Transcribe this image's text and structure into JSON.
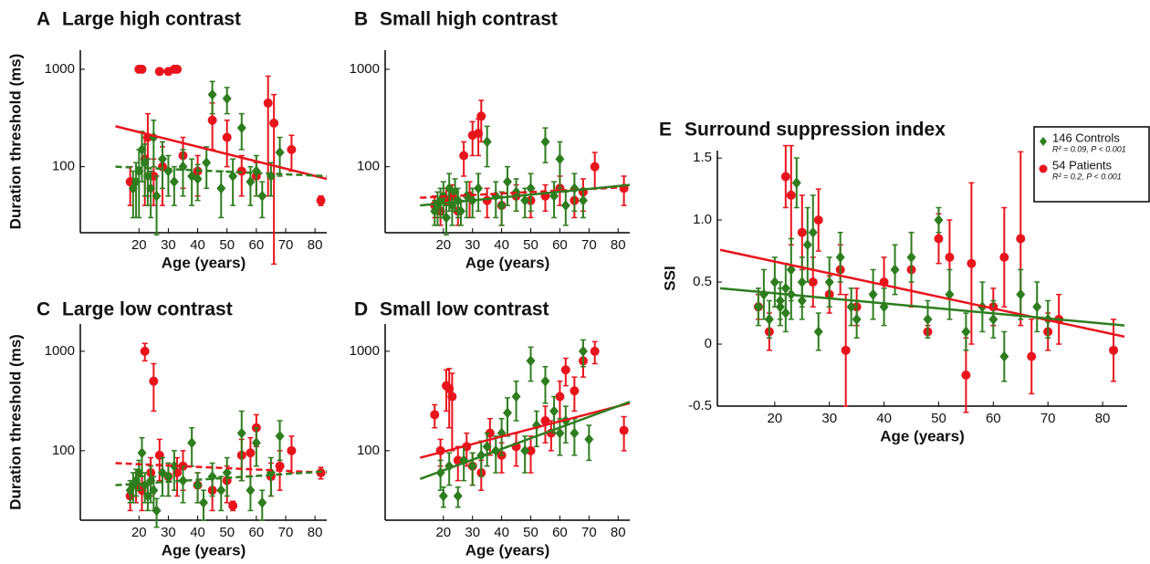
{
  "chart_data": [
    {
      "type": "scatter",
      "panel": "A",
      "title": "Large high contrast",
      "xlabel": "Age (years)",
      "ylabel": "Duration threshold (ms)",
      "log_y": true,
      "xlim": [
        0,
        84
      ],
      "ylim": [
        21,
        1570
      ],
      "xticks": [
        20,
        30,
        40,
        50,
        60,
        70,
        80
      ],
      "yticks": [
        100,
        1000
      ],
      "series": [
        {
          "color": "#e8141c",
          "marker": "circle",
          "x": [
            17,
            20,
            21,
            22,
            23,
            25,
            27,
            28,
            30,
            32,
            33,
            35,
            40,
            45,
            50,
            55,
            60,
            64,
            66,
            72,
            82
          ],
          "values": [
            70,
            1000,
            1000,
            120,
            200,
            80,
            950,
            100,
            950,
            1000,
            1000,
            130,
            90,
            300,
            200,
            90,
            80,
            450,
            280,
            150,
            45
          ],
          "errors": [
            30,
            0,
            0,
            80,
            150,
            40,
            0,
            60,
            0,
            0,
            0,
            70,
            40,
            150,
            100,
            40,
            30,
            400,
            270,
            60,
            5
          ],
          "fit": {
            "x": [
              12,
              84
            ],
            "y": [
              260,
              75
            ],
            "dashed": false
          }
        },
        {
          "color": "#2e7d1f",
          "marker": "diamond",
          "x": [
            18,
            19,
            20,
            21,
            22,
            23,
            24,
            25,
            26,
            28,
            30,
            32,
            35,
            38,
            40,
            43,
            45,
            48,
            50,
            52,
            55,
            58,
            60,
            62,
            65,
            68
          ],
          "values": [
            60,
            70,
            90,
            150,
            110,
            80,
            60,
            200,
            50,
            120,
            90,
            70,
            100,
            80,
            75,
            110,
            550,
            60,
            500,
            80,
            250,
            70,
            90,
            50,
            80,
            140
          ],
          "errors": [
            30,
            40,
            60,
            80,
            60,
            40,
            30,
            100,
            30,
            60,
            40,
            30,
            50,
            40,
            30,
            50,
            200,
            30,
            150,
            40,
            100,
            30,
            40,
            20,
            30,
            60
          ],
          "fit": {
            "x": [
              12,
              84
            ],
            "y": [
              100,
              80
            ],
            "dashed": true
          }
        }
      ]
    },
    {
      "type": "scatter",
      "panel": "B",
      "title": "Small high contrast",
      "xlabel": "Age (years)",
      "log_y": true,
      "xlim": [
        0,
        84
      ],
      "ylim": [
        21,
        1570
      ],
      "xticks": [
        20,
        30,
        40,
        50,
        60,
        70,
        80
      ],
      "yticks": [
        100,
        1000
      ],
      "series": [
        {
          "color": "#e8141c",
          "marker": "circle",
          "x": [
            17,
            19,
            21,
            23,
            25,
            27,
            29,
            30,
            32,
            33,
            35,
            40,
            45,
            50,
            55,
            60,
            65,
            68,
            72,
            82
          ],
          "values": [
            40,
            35,
            45,
            50,
            35,
            130,
            50,
            210,
            220,
            330,
            45,
            40,
            50,
            45,
            50,
            60,
            45,
            55,
            100,
            60
          ],
          "errors": [
            10,
            10,
            15,
            15,
            10,
            50,
            20,
            80,
            90,
            150,
            15,
            15,
            15,
            15,
            15,
            20,
            15,
            20,
            40,
            20
          ],
          "fit": {
            "x": [
              12,
              84
            ],
            "y": [
              48,
              62
            ],
            "dashed": true
          }
        },
        {
          "color": "#2e7d1f",
          "marker": "diamond",
          "x": [
            17,
            18,
            19,
            20,
            21,
            22,
            23,
            24,
            25,
            26,
            28,
            30,
            32,
            35,
            38,
            40,
            42,
            45,
            48,
            50,
            55,
            58,
            60,
            62,
            65,
            68
          ],
          "values": [
            35,
            40,
            45,
            50,
            30,
            60,
            40,
            55,
            45,
            35,
            50,
            45,
            60,
            180,
            50,
            40,
            70,
            55,
            45,
            60,
            180,
            50,
            120,
            40,
            60,
            45
          ],
          "errors": [
            10,
            15,
            15,
            20,
            10,
            25,
            15,
            20,
            15,
            10,
            20,
            15,
            25,
            80,
            20,
            15,
            30,
            20,
            15,
            25,
            70,
            20,
            60,
            15,
            25,
            15
          ],
          "fit": {
            "x": [
              12,
              84
            ],
            "y": [
              40,
              65
            ],
            "dashed": false
          }
        }
      ]
    },
    {
      "type": "scatter",
      "panel": "C",
      "title": "Large low contrast",
      "xlabel": "Age (years)",
      "ylabel": "Duration threshold (ms)",
      "log_y": true,
      "xlim": [
        0,
        84
      ],
      "ylim": [
        20,
        1880
      ],
      "xticks": [
        20,
        30,
        40,
        50,
        60,
        70,
        80
      ],
      "yticks": [
        100,
        1000
      ],
      "series": [
        {
          "color": "#e8141c",
          "marker": "circle",
          "x": [
            17,
            19,
            21,
            22,
            24,
            25,
            27,
            30,
            33,
            35,
            40,
            45,
            50,
            52,
            55,
            58,
            60,
            65,
            68,
            72,
            82
          ],
          "values": [
            35,
            45,
            40,
            1000,
            60,
            500,
            90,
            55,
            60,
            70,
            45,
            40,
            50,
            28,
            90,
            95,
            170,
            55,
            70,
            100,
            60
          ],
          "errors": [
            10,
            15,
            15,
            200,
            25,
            250,
            40,
            20,
            25,
            30,
            15,
            15,
            20,
            3,
            40,
            40,
            60,
            20,
            30,
            40,
            8
          ],
          "fit": {
            "x": [
              12,
              84
            ],
            "y": [
              75,
              60
            ],
            "dashed": true
          }
        },
        {
          "color": "#2e7d1f",
          "marker": "diamond",
          "x": [
            17,
            18,
            19,
            20,
            21,
            22,
            23,
            24,
            25,
            26,
            28,
            30,
            32,
            35,
            38,
            40,
            42,
            45,
            48,
            50,
            55,
            58,
            60,
            62,
            65,
            68
          ],
          "values": [
            40,
            45,
            50,
            60,
            95,
            45,
            35,
            50,
            40,
            25,
            60,
            55,
            70,
            50,
            120,
            45,
            30,
            55,
            40,
            60,
            150,
            40,
            120,
            30,
            60,
            140
          ],
          "errors": [
            10,
            15,
            15,
            20,
            40,
            15,
            10,
            20,
            15,
            8,
            25,
            20,
            30,
            20,
            50,
            15,
            10,
            20,
            15,
            25,
            100,
            15,
            50,
            10,
            25,
            60
          ],
          "fit": {
            "x": [
              12,
              84
            ],
            "y": [
              45,
              62
            ],
            "dashed": true
          }
        }
      ]
    },
    {
      "type": "scatter",
      "panel": "D",
      "title": "Small low contrast",
      "xlabel": "Age (years)",
      "log_y": true,
      "xlim": [
        0,
        84
      ],
      "ylim": [
        20,
        1880
      ],
      "xticks": [
        20,
        30,
        40,
        50,
        60,
        70,
        80
      ],
      "yticks": [
        100,
        1000
      ],
      "series": [
        {
          "color": "#e8141c",
          "marker": "circle",
          "x": [
            17,
            19,
            21,
            22,
            23,
            25,
            28,
            30,
            33,
            36,
            40,
            45,
            50,
            55,
            57,
            60,
            62,
            65,
            68,
            72,
            82
          ],
          "values": [
            230,
            100,
            450,
            420,
            350,
            80,
            110,
            70,
            60,
            150,
            90,
            110,
            100,
            200,
            150,
            350,
            650,
            400,
            800,
            1000,
            160
          ],
          "errors": [
            60,
            30,
            200,
            250,
            250,
            30,
            40,
            25,
            20,
            60,
            30,
            40,
            40,
            80,
            50,
            150,
            200,
            150,
            250,
            250,
            60
          ],
          "fit": {
            "x": [
              12,
              84
            ],
            "y": [
              85,
              300
            ],
            "dashed": false
          }
        },
        {
          "color": "#2e7d1f",
          "marker": "diamond",
          "x": [
            19,
            20,
            22,
            25,
            27,
            30,
            33,
            35,
            38,
            40,
            42,
            45,
            48,
            50,
            52,
            55,
            58,
            60,
            62,
            65,
            68,
            70
          ],
          "values": [
            60,
            35,
            70,
            35,
            80,
            70,
            90,
            110,
            100,
            150,
            240,
            350,
            100,
            800,
            180,
            500,
            250,
            150,
            200,
            150,
            1000,
            130
          ],
          "errors": [
            20,
            8,
            25,
            8,
            30,
            25,
            35,
            40,
            40,
            60,
            100,
            150,
            40,
            300,
            70,
            200,
            100,
            60,
            80,
            60,
            300,
            50
          ],
          "fit": {
            "x": [
              12,
              84
            ],
            "y": [
              52,
              310
            ],
            "dashed": false
          }
        }
      ]
    },
    {
      "type": "scatter",
      "panel": "E",
      "title": "Surround suppression index",
      "xlabel": "Age (years)",
      "ylabel": "SSI",
      "log_y": false,
      "xlim": [
        9.5,
        84.5
      ],
      "ylim": [
        -0.5,
        1.56
      ],
      "xticks": [
        20,
        30,
        40,
        50,
        60,
        70,
        80
      ],
      "yticks": [
        -0.5,
        0,
        0.5,
        {
          "value": 1,
          "label": "1.0"
        },
        1.5
      ],
      "series": [
        {
          "name": "54 Patients",
          "stats": "R² = 0.2,  P < 0.001",
          "color": "#e8141c",
          "marker": "circle",
          "x": [
            17,
            19,
            22,
            23,
            25,
            27,
            28,
            30,
            32,
            33,
            35,
            40,
            45,
            48,
            50,
            52,
            55,
            56,
            60,
            62,
            65,
            67,
            70,
            72,
            82
          ],
          "values": [
            0.3,
            0.1,
            1.35,
            1.2,
            0.9,
            0.5,
            1.0,
            0.4,
            0.6,
            -0.05,
            0.3,
            0.5,
            0.6,
            0.1,
            0.85,
            0.7,
            -0.25,
            0.65,
            0.3,
            0.7,
            0.85,
            -0.1,
            0.1,
            0.2,
            -0.05
          ],
          "errors": [
            0.1,
            0.15,
            0.25,
            0.4,
            0.3,
            0.2,
            0.25,
            0.15,
            0.2,
            0.45,
            0.15,
            0.2,
            0.3,
            0.05,
            0.2,
            0.3,
            0.3,
            0.65,
            0.15,
            0.4,
            0.7,
            0.3,
            0.15,
            0.2,
            0.25
          ],
          "fit": {
            "x": [
              10,
              84
            ],
            "y": [
              0.76,
              0.06
            ],
            "dashed": false
          }
        },
        {
          "name": "146 Controls",
          "stats": "R² = 0.09,  P < 0.001",
          "color": "#2e7d1f",
          "marker": "diamond",
          "x": [
            17,
            18,
            19,
            20,
            21,
            21,
            22,
            22,
            23,
            23,
            24,
            25,
            25,
            26,
            27,
            28,
            30,
            32,
            34,
            35,
            38,
            40,
            42,
            45,
            48,
            50,
            52,
            55,
            58,
            60,
            62,
            65,
            68,
            70
          ],
          "values": [
            0.3,
            0.4,
            0.2,
            0.5,
            0.3,
            0.35,
            0.45,
            0.25,
            0.4,
            0.6,
            1.3,
            0.5,
            0.35,
            0.8,
            0.9,
            0.1,
            0.5,
            0.7,
            0.3,
            0.2,
            0.4,
            0.3,
            0.6,
            0.7,
            0.2,
            1.0,
            0.4,
            0.1,
            0.3,
            0.2,
            -0.1,
            0.4,
            0.3,
            0.2
          ],
          "errors": [
            0.15,
            0.2,
            0.15,
            0.2,
            0.15,
            0.15,
            0.2,
            0.15,
            0.2,
            0.25,
            0.2,
            0.2,
            0.15,
            0.3,
            0.3,
            0.15,
            0.2,
            0.2,
            0.15,
            0.15,
            0.2,
            0.15,
            0.2,
            0.2,
            0.15,
            0.1,
            0.2,
            0.15,
            0.2,
            0.15,
            0.2,
            0.2,
            0.2,
            0.15
          ],
          "fit": {
            "x": [
              10,
              84
            ],
            "y": [
              0.45,
              0.15
            ],
            "dashed": false
          }
        }
      ]
    }
  ]
}
